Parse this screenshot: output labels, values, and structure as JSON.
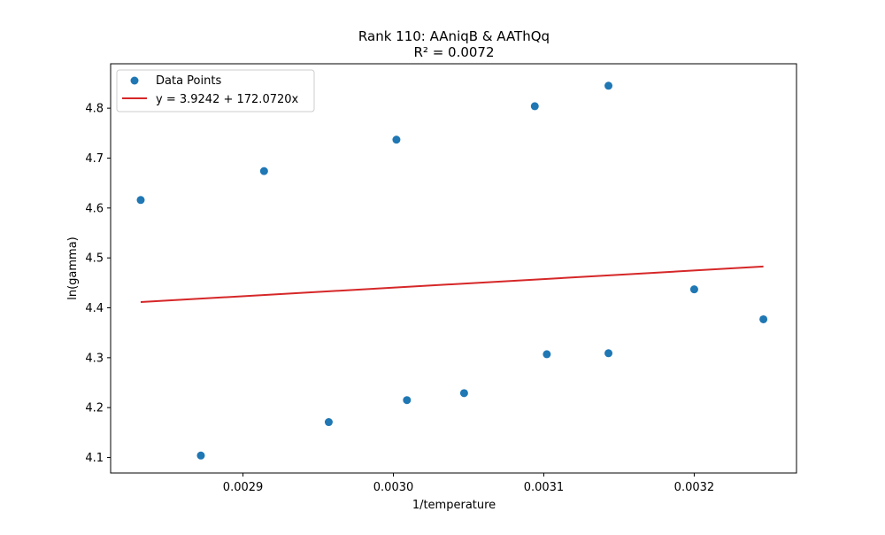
{
  "chart_data": {
    "type": "scatter",
    "title": "Rank 110: AAniqB & AAThQq",
    "subtitle": "R² = 0.0072",
    "xlabel": "1/temperature",
    "ylabel": "ln(gamma)",
    "xlim": [
      0.002812,
      0.003268
    ],
    "ylim": [
      4.069,
      4.889
    ],
    "xticks": [
      0.0029,
      0.003,
      0.0031,
      0.0032
    ],
    "xtick_labels": [
      "0.0029",
      "0.0030",
      "0.0031",
      "0.0032"
    ],
    "yticks": [
      4.1,
      4.2,
      4.3,
      4.4,
      4.5,
      4.6,
      4.7,
      4.8
    ],
    "ytick_labels": [
      "4.1",
      "4.2",
      "4.3",
      "4.4",
      "4.5",
      "4.6",
      "4.7",
      "4.8"
    ],
    "grid": false,
    "legend": {
      "position": "top-left",
      "entries": [
        "Data Points",
        "y = 3.9242 + 172.0720x"
      ]
    },
    "series": [
      {
        "name": "Data Points",
        "kind": "scatter",
        "color": "#1f77b4",
        "points": [
          [
            0.002832,
            4.616
          ],
          [
            0.002872,
            4.104
          ],
          [
            0.002914,
            4.674
          ],
          [
            0.002957,
            4.171
          ],
          [
            0.003002,
            4.737
          ],
          [
            0.003009,
            4.215
          ],
          [
            0.003047,
            4.229
          ],
          [
            0.003094,
            4.804
          ],
          [
            0.003102,
            4.307
          ],
          [
            0.003143,
            4.845
          ],
          [
            0.003143,
            4.309
          ],
          [
            0.0032,
            4.437
          ],
          [
            0.003246,
            4.377
          ]
        ]
      },
      {
        "name": "y = 3.9242 + 172.0720x",
        "kind": "line",
        "color": "#d62728",
        "intercept": 3.9242,
        "slope": 172.072,
        "x_range": [
          0.002832,
          0.003246
        ]
      }
    ]
  }
}
